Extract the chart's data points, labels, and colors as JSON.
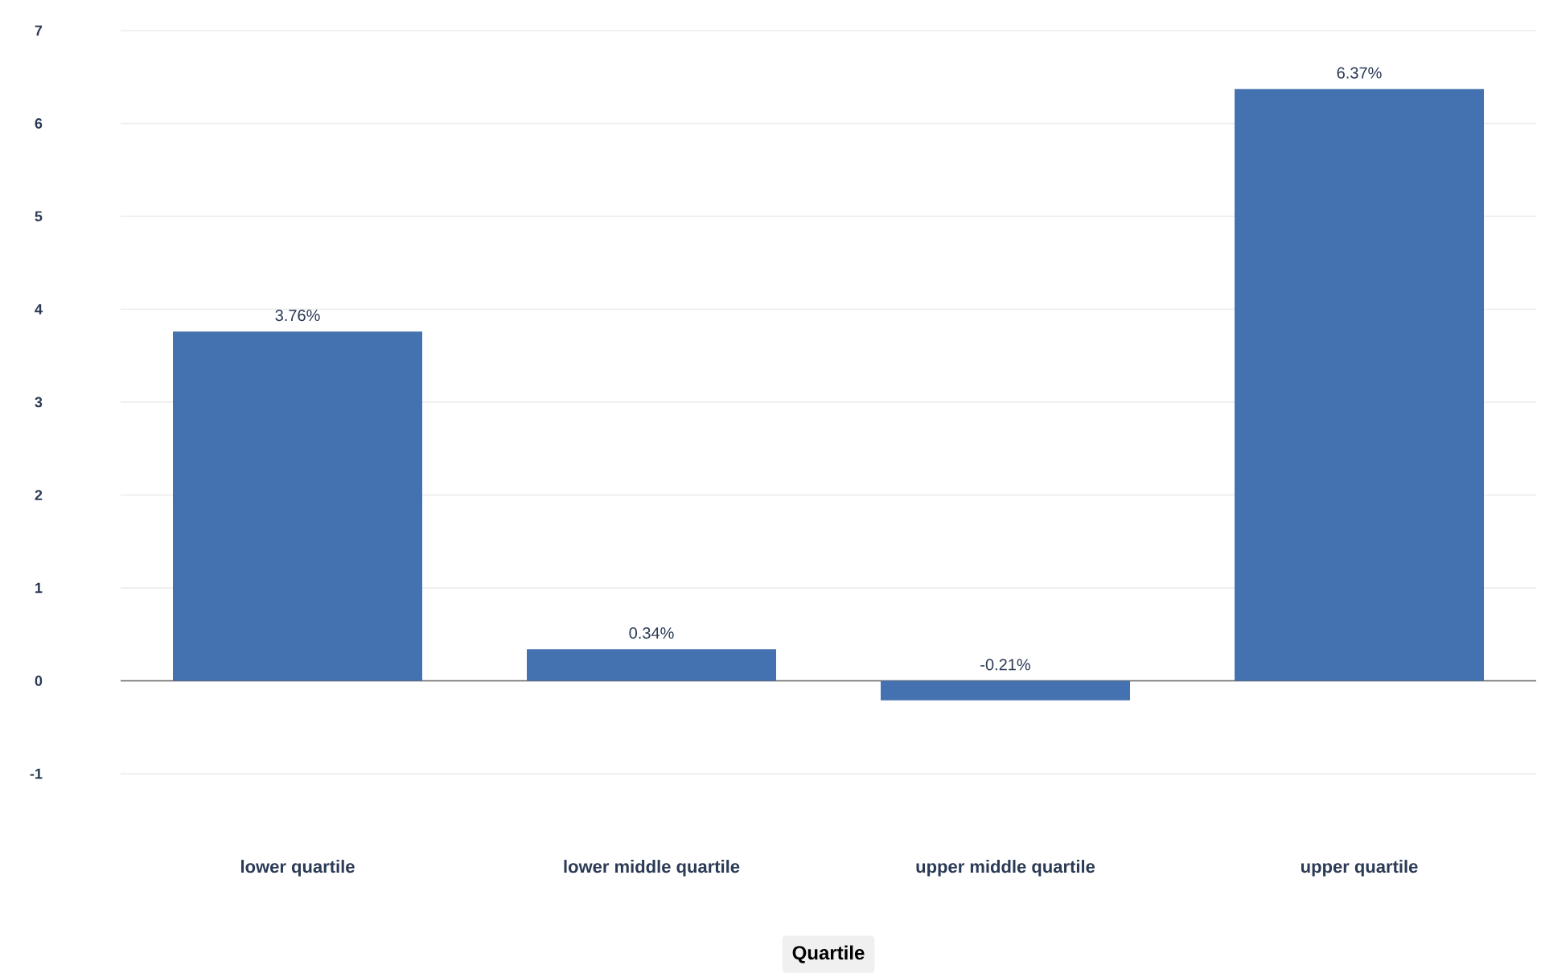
{
  "chart_data": {
    "type": "bar",
    "xlabel": "Quartile",
    "categories": [
      "lower quartile",
      "lower middle quartile",
      "upper middle quartile",
      "upper quartile"
    ],
    "values": [
      3.76,
      0.34,
      -0.21,
      6.37
    ],
    "value_labels": [
      "3.76%",
      "0.34%",
      "-0.21%",
      "6.37%"
    ],
    "color": "#4472b0",
    "ylim": [
      -1,
      7
    ],
    "yticks": [
      -1,
      0,
      1,
      2,
      3,
      4,
      5,
      6,
      7
    ],
    "grid": "y"
  }
}
